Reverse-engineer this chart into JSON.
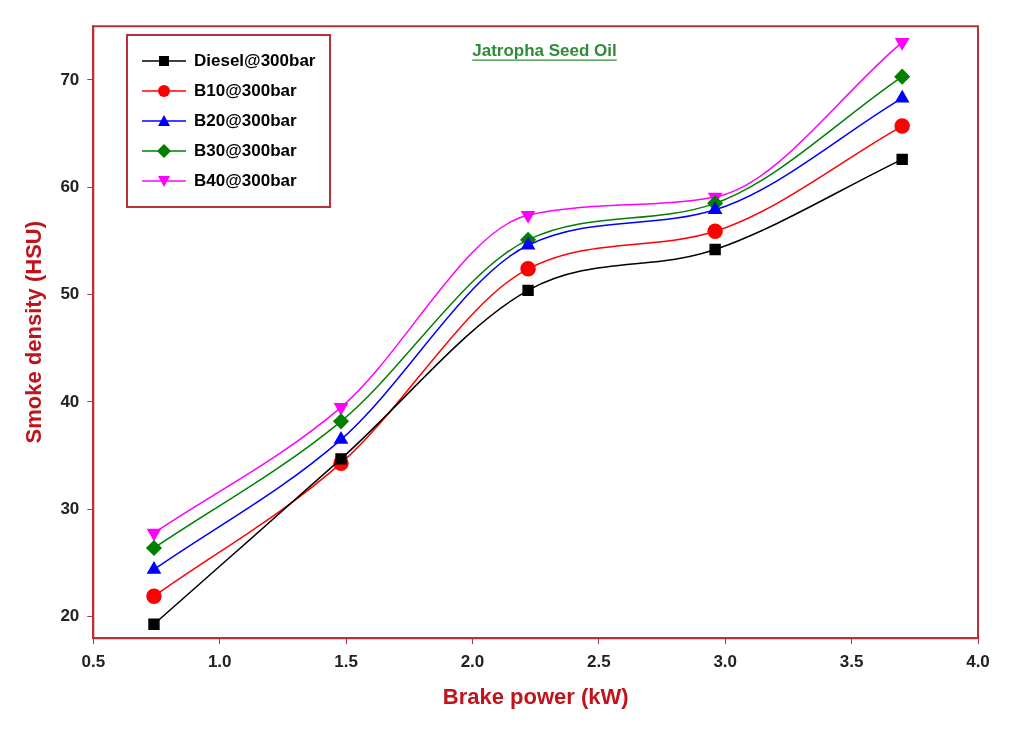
{
  "chart_data": {
    "type": "line",
    "xlabel": "Brake power (kW)",
    "ylabel": "Smoke density (HSU)",
    "annotations": [
      "Jatropha Seed Oil"
    ],
    "x": [
      0.74,
      1.48,
      2.22,
      2.96,
      3.7
    ],
    "xlim": [
      0.5,
      4.0
    ],
    "xticks": [
      0.5,
      {
        "value": 1,
        "label": "1.0"
      },
      1.5,
      {
        "value": 2,
        "label": "2.0"
      },
      2.5,
      {
        "value": 3,
        "label": "3.0"
      },
      3.5,
      {
        "value": 4,
        "label": "4.0"
      }
    ],
    "ylim": [
      18,
      75
    ],
    "yticks": [
      20,
      30,
      40,
      50,
      60,
      70
    ],
    "grid": false,
    "legend": "top left",
    "line_style": "solid",
    "series": [
      {
        "name": "Diesel@300bar",
        "color": "#000000",
        "marker": "square",
        "values": [
          19.3,
          34.7,
          50.4,
          54.2,
          62.6
        ]
      },
      {
        "name": "B10@300bar",
        "color": "#ff0000",
        "marker": "circle",
        "values": [
          21.9,
          34.3,
          52.4,
          55.9,
          65.7
        ]
      },
      {
        "name": "B20@300bar",
        "color": "#0000ff",
        "marker": "triangle",
        "values": [
          24.4,
          36.5,
          54.6,
          57.9,
          68.3
        ]
      },
      {
        "name": "B30@300bar",
        "color": "#008000",
        "marker": "diamond",
        "values": [
          26.4,
          38.2,
          55.1,
          58.5,
          70.3
        ]
      },
      {
        "name": "B40@300bar",
        "color": "#ff00ff",
        "marker": "triangle-down",
        "values": [
          27.8,
          39.5,
          57.4,
          59.1,
          73.5
        ]
      }
    ]
  }
}
